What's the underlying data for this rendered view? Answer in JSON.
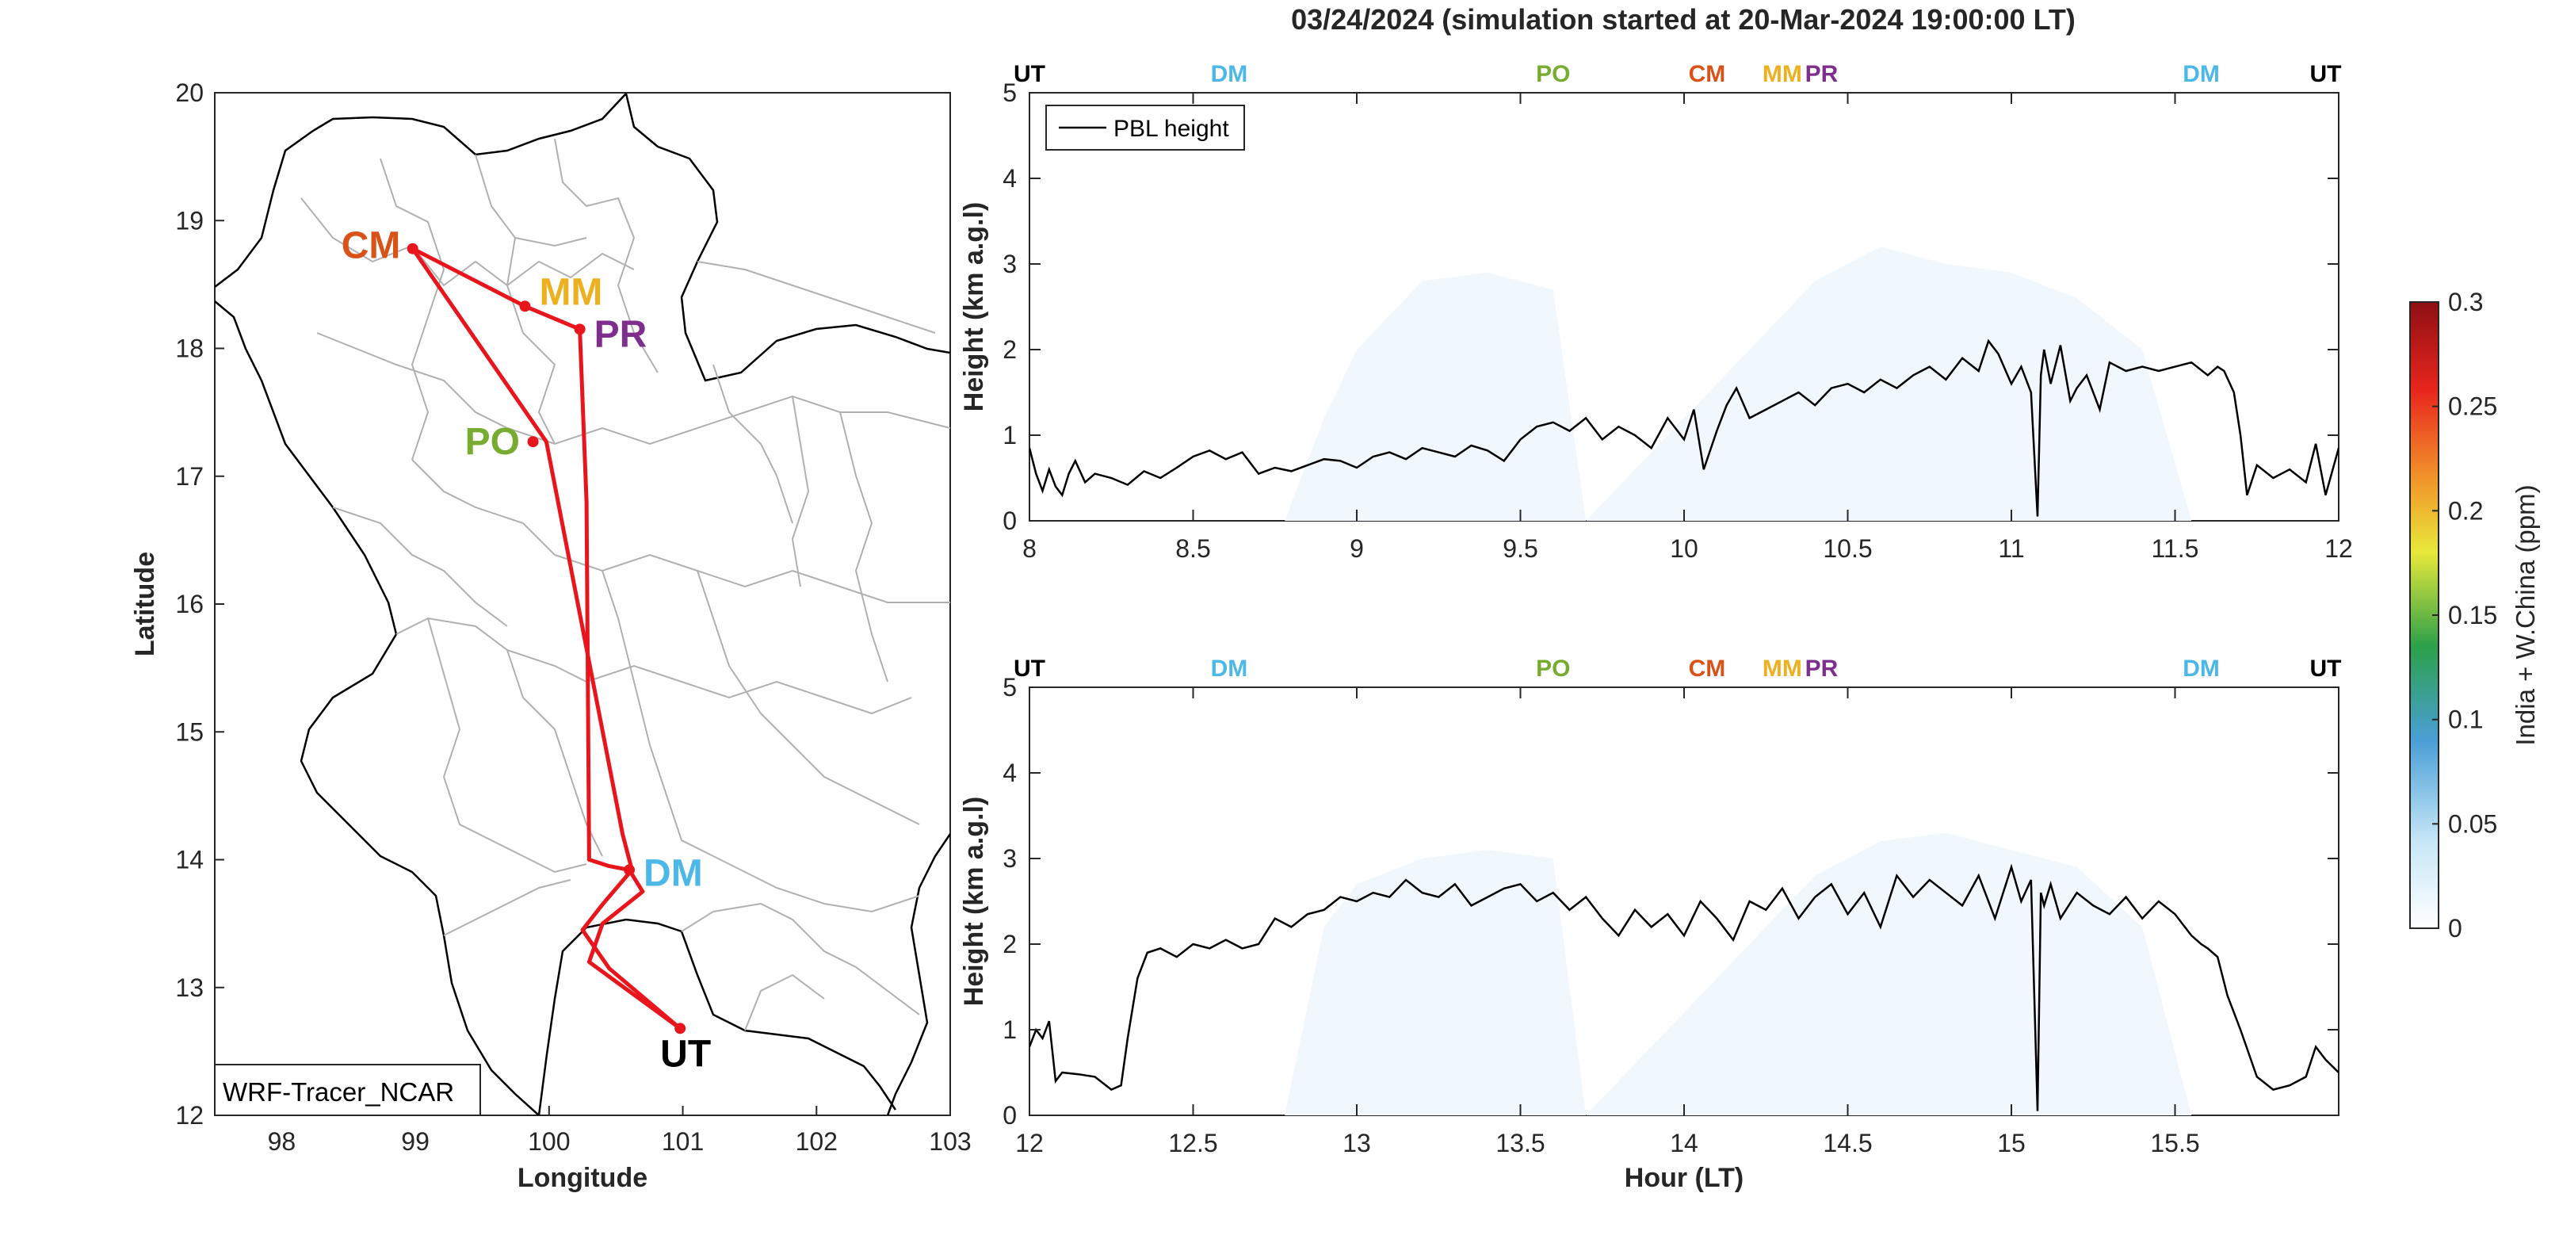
{
  "figure": {
    "title": "03/24/2024 (simulation started at 20-Mar-2024 19:00:00 LT)"
  },
  "colors": {
    "route": "#e8151c",
    "UT": "#000000",
    "DM": "#4bb8e8",
    "PO": "#77ac30",
    "CM": "#d95319",
    "MM": "#edb120",
    "PR": "#7e2f8e",
    "pbl": "#000000",
    "axes": "#262626",
    "grid_border": "#a6a6a6"
  },
  "chart_data": [
    {
      "type": "map",
      "xlabel": "Longitude",
      "ylabel": "Latitude",
      "xlim": [
        97.5,
        103
      ],
      "ylim": [
        12,
        20
      ],
      "xticks": [
        "98",
        "99",
        "100",
        "101",
        "102",
        "103"
      ],
      "yticks": [
        "12",
        "13",
        "14",
        "15",
        "16",
        "17",
        "18",
        "19",
        "20"
      ],
      "legend_box": "WRF-Tracer_NCAR",
      "stations": [
        {
          "id": "CM",
          "label": "CM",
          "lon": 98.98,
          "lat": 18.78
        },
        {
          "id": "MM",
          "label": "MM",
          "lon": 99.82,
          "lat": 18.33
        },
        {
          "id": "PR",
          "label": "PR",
          "lon": 100.23,
          "lat": 18.15
        },
        {
          "id": "PO",
          "label": "PO",
          "lon": 99.88,
          "lat": 17.27
        },
        {
          "id": "DM",
          "label": "DM",
          "lon": 100.6,
          "lat": 13.92
        },
        {
          "id": "UT",
          "label": "UT",
          "lon": 100.98,
          "lat": 12.68
        }
      ],
      "route_lon": [
        100.98,
        100.45,
        100.25,
        100.4,
        100.62,
        100.55,
        99.98,
        98.98,
        99.82,
        100.23,
        100.28,
        100.3,
        100.45,
        100.6,
        100.7,
        100.4,
        100.3,
        100.98
      ],
      "route_lat": [
        12.68,
        13.15,
        13.45,
        13.65,
        13.92,
        14.2,
        17.27,
        18.78,
        18.33,
        18.15,
        16.8,
        14.0,
        13.95,
        13.92,
        13.75,
        13.5,
        13.2,
        12.68
      ]
    },
    {
      "type": "line",
      "panel": "top",
      "ylabel": "Height (km a.g.l)",
      "xlim": [
        8,
        12
      ],
      "ylim": [
        0,
        5
      ],
      "xticks": [
        "8",
        "8.5",
        "9",
        "9.5",
        "10",
        "10.5",
        "11",
        "11.5",
        "12"
      ],
      "yticks": [
        "0",
        "1",
        "2",
        "3",
        "4",
        "5"
      ],
      "top_labels": [
        {
          "text": "UT",
          "x": 8.0,
          "color": "UT"
        },
        {
          "text": "DM",
          "x": 8.61,
          "color": "DM"
        },
        {
          "text": "PO",
          "x": 9.6,
          "color": "PO"
        },
        {
          "text": "CM",
          "x": 10.07,
          "color": "CM"
        },
        {
          "text": "MM",
          "x": 10.3,
          "color": "MM"
        },
        {
          "text": "PR",
          "x": 10.42,
          "color": "PR"
        },
        {
          "text": "DM",
          "x": 11.58,
          "color": "DM"
        },
        {
          "text": "UT",
          "x": 11.96,
          "color": "UT"
        }
      ],
      "legend": "PBL height",
      "series": [
        {
          "name": "PBL height",
          "x": [
            8.0,
            8.02,
            8.04,
            8.06,
            8.08,
            8.1,
            8.12,
            8.14,
            8.17,
            8.2,
            8.25,
            8.3,
            8.35,
            8.4,
            8.45,
            8.5,
            8.55,
            8.6,
            8.65,
            8.7,
            8.75,
            8.8,
            8.85,
            8.9,
            8.95,
            9.0,
            9.05,
            9.1,
            9.15,
            9.2,
            9.25,
            9.3,
            9.35,
            9.4,
            9.45,
            9.5,
            9.55,
            9.6,
            9.65,
            9.7,
            9.75,
            9.8,
            9.85,
            9.9,
            9.95,
            10.0,
            10.03,
            10.06,
            10.1,
            10.13,
            10.16,
            10.2,
            10.25,
            10.3,
            10.35,
            10.4,
            10.45,
            10.5,
            10.55,
            10.6,
            10.65,
            10.7,
            10.75,
            10.8,
            10.85,
            10.9,
            10.93,
            10.96,
            11.0,
            11.03,
            11.06,
            11.08,
            11.09,
            11.1,
            11.12,
            11.15,
            11.18,
            11.2,
            11.23,
            11.27,
            11.3,
            11.35,
            11.4,
            11.45,
            11.5,
            11.55,
            11.6,
            11.63,
            11.65,
            11.68,
            11.7,
            11.72,
            11.75,
            11.8,
            11.85,
            11.9,
            11.93,
            11.96,
            12.0
          ],
          "y": [
            0.85,
            0.55,
            0.35,
            0.6,
            0.4,
            0.3,
            0.55,
            0.7,
            0.45,
            0.55,
            0.5,
            0.42,
            0.58,
            0.5,
            0.62,
            0.75,
            0.82,
            0.72,
            0.8,
            0.55,
            0.62,
            0.58,
            0.65,
            0.72,
            0.7,
            0.62,
            0.75,
            0.8,
            0.72,
            0.85,
            0.8,
            0.75,
            0.88,
            0.82,
            0.7,
            0.95,
            1.1,
            1.15,
            1.05,
            1.2,
            0.95,
            1.1,
            1.0,
            0.85,
            1.2,
            0.95,
            1.3,
            0.6,
            1.05,
            1.35,
            1.55,
            1.2,
            1.3,
            1.4,
            1.5,
            1.35,
            1.55,
            1.6,
            1.5,
            1.65,
            1.55,
            1.7,
            1.8,
            1.65,
            1.9,
            1.75,
            2.1,
            1.95,
            1.6,
            1.8,
            1.5,
            0.05,
            1.7,
            2.0,
            1.6,
            2.05,
            1.4,
            1.55,
            1.7,
            1.3,
            1.85,
            1.75,
            1.8,
            1.75,
            1.8,
            1.85,
            1.7,
            1.8,
            1.75,
            1.5,
            1.0,
            0.3,
            0.65,
            0.5,
            0.6,
            0.45,
            0.9,
            0.3,
            0.85
          ]
        }
      ],
      "shade_x": [
        8.78,
        8.9,
        9.0,
        9.2,
        9.4,
        9.6,
        9.7,
        10.2,
        10.4,
        10.6,
        10.8,
        11.0,
        11.2,
        11.4,
        11.55
      ],
      "shade_y": [
        0,
        1.2,
        2.0,
        2.8,
        2.9,
        2.7,
        0,
        2.0,
        2.8,
        3.2,
        3.0,
        2.9,
        2.6,
        2.0,
        0
      ]
    },
    {
      "type": "line",
      "panel": "bottom",
      "ylabel": "Height (km a.g.l)",
      "xlabel": "Hour (LT)",
      "xlim": [
        12,
        16
      ],
      "ylim": [
        0,
        5
      ],
      "xticks": [
        "12",
        "12.5",
        "13",
        "13.5",
        "14",
        "14.5",
        "15",
        "15.5"
      ],
      "yticks": [
        "0",
        "1",
        "2",
        "3",
        "4",
        "5"
      ],
      "top_labels": [
        {
          "text": "UT",
          "x": 12.0,
          "color": "UT"
        },
        {
          "text": "DM",
          "x": 12.61,
          "color": "DM"
        },
        {
          "text": "PO",
          "x": 13.6,
          "color": "PO"
        },
        {
          "text": "CM",
          "x": 14.07,
          "color": "CM"
        },
        {
          "text": "MM",
          "x": 14.3,
          "color": "MM"
        },
        {
          "text": "PR",
          "x": 14.42,
          "color": "PR"
        },
        {
          "text": "DM",
          "x": 15.58,
          "color": "DM"
        },
        {
          "text": "UT",
          "x": 15.96,
          "color": "UT"
        }
      ],
      "series": [
        {
          "name": "PBL height",
          "x": [
            12.0,
            12.02,
            12.04,
            12.06,
            12.08,
            12.1,
            12.15,
            12.2,
            12.25,
            12.28,
            12.3,
            12.33,
            12.36,
            12.4,
            12.45,
            12.5,
            12.55,
            12.6,
            12.65,
            12.7,
            12.75,
            12.8,
            12.85,
            12.9,
            12.95,
            13.0,
            13.05,
            13.1,
            13.15,
            13.2,
            13.25,
            13.3,
            13.35,
            13.4,
            13.45,
            13.5,
            13.55,
            13.6,
            13.65,
            13.7,
            13.75,
            13.8,
            13.85,
            13.9,
            13.95,
            14.0,
            14.05,
            14.1,
            14.15,
            14.2,
            14.25,
            14.3,
            14.35,
            14.4,
            14.45,
            14.5,
            14.55,
            14.6,
            14.65,
            14.7,
            14.75,
            14.8,
            14.85,
            14.9,
            14.95,
            15.0,
            15.03,
            15.06,
            15.08,
            15.09,
            15.1,
            15.12,
            15.15,
            15.2,
            15.25,
            15.3,
            15.35,
            15.4,
            15.45,
            15.5,
            15.55,
            15.58,
            15.6,
            15.63,
            15.66,
            15.7,
            15.75,
            15.8,
            15.85,
            15.9,
            15.93,
            15.96,
            16.0
          ],
          "y": [
            0.8,
            1.0,
            0.9,
            1.1,
            0.4,
            0.5,
            0.48,
            0.45,
            0.3,
            0.35,
            0.9,
            1.6,
            1.9,
            1.95,
            1.85,
            2.0,
            1.95,
            2.05,
            1.95,
            2.0,
            2.3,
            2.2,
            2.35,
            2.4,
            2.55,
            2.5,
            2.6,
            2.55,
            2.75,
            2.6,
            2.55,
            2.7,
            2.45,
            2.55,
            2.65,
            2.7,
            2.5,
            2.6,
            2.4,
            2.55,
            2.3,
            2.1,
            2.4,
            2.2,
            2.35,
            2.1,
            2.5,
            2.3,
            2.05,
            2.5,
            2.4,
            2.65,
            2.3,
            2.55,
            2.7,
            2.35,
            2.6,
            2.2,
            2.8,
            2.55,
            2.75,
            2.6,
            2.45,
            2.8,
            2.3,
            2.9,
            2.5,
            2.75,
            0.05,
            2.6,
            2.45,
            2.7,
            2.3,
            2.6,
            2.45,
            2.35,
            2.55,
            2.3,
            2.5,
            2.35,
            2.1,
            2.0,
            1.95,
            1.85,
            1.4,
            1.0,
            0.45,
            0.3,
            0.35,
            0.45,
            0.8,
            0.65,
            0.5
          ],
          "color": "pbl"
        }
      ],
      "shade_x": [
        12.78,
        12.9,
        13.0,
        13.2,
        13.4,
        13.6,
        13.7,
        14.2,
        14.4,
        14.6,
        14.8,
        15.0,
        15.2,
        15.4,
        15.55
      ],
      "shade_y": [
        0,
        2.2,
        2.7,
        3.0,
        3.1,
        3.0,
        0,
        2.0,
        2.8,
        3.2,
        3.3,
        3.1,
        2.9,
        2.2,
        0
      ]
    },
    {
      "type": "colorbar",
      "label": "India + W.China (ppm)",
      "ticks": [
        "0",
        "0.05",
        "0.1",
        "0.15",
        "0.2",
        "0.25",
        "0.3"
      ],
      "range": [
        0,
        0.3
      ],
      "colormap": [
        "#ffffff",
        "#c6e6f6",
        "#4a9fd6",
        "#2ca04a",
        "#e8e83a",
        "#f2932a",
        "#e8251d",
        "#8e0f13"
      ]
    }
  ]
}
